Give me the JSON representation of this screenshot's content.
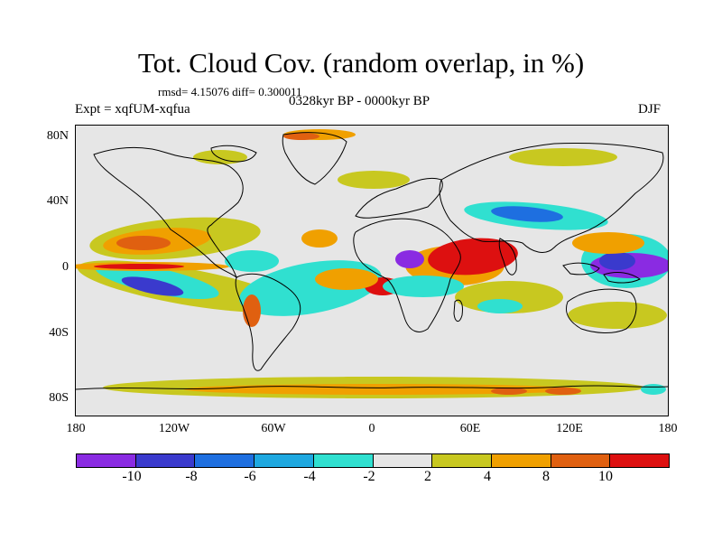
{
  "title": "Tot. Cloud Cov. (random overlap, in %)",
  "stats": "rmsd= 4.15076 diff= 0.300011",
  "period": "0328kyr BP - 0000kyr BP",
  "experiment": "Expt = xqfUM-xqfua",
  "season": "DJF",
  "lat_ticks": [
    "80N",
    "40N",
    "0",
    "40S",
    "80S"
  ],
  "lon_ticks": [
    "180",
    "120W",
    "60W",
    "0",
    "60E",
    "120E",
    "180"
  ],
  "colorbar": {
    "colors": [
      "#8a2be2",
      "#3a3acd",
      "#1e6fe0",
      "#1ea8e0",
      "#30e0d0",
      "#e6e6e6",
      "#c8c820",
      "#f0a000",
      "#e06010",
      "#dd1010"
    ],
    "labels": [
      "-10",
      "-8",
      "-6",
      "-4",
      "-2",
      "2",
      "4",
      "8",
      "10"
    ]
  },
  "field_colors": {
    "purple": "#8a2be2",
    "blue": "#3a3acd",
    "mblue": "#1e6fe0",
    "lblue": "#1ea8e0",
    "cyan": "#30e0d0",
    "yellow": "#c8c820",
    "orange": "#f0a000",
    "dorange": "#e06010",
    "red": "#dd1010"
  }
}
